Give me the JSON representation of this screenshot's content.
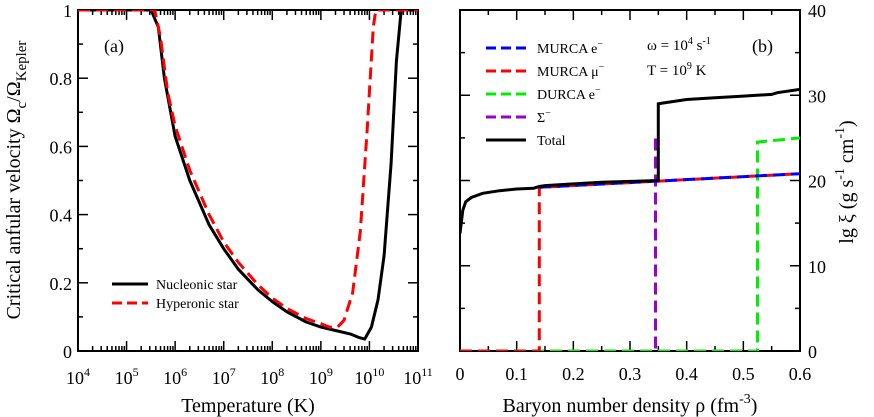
{
  "chart_data": [
    {
      "type": "line",
      "panel_label": "(a)",
      "xlabel": "Temperature (K)",
      "ylabel_parts": [
        "Critical anfular velocity ",
        "Ω",
        "c",
        "/",
        "Ω",
        "Kepler"
      ],
      "xscale": "log",
      "xlim": [
        10000,
        100000000000
      ],
      "ylim": [
        0,
        1
      ],
      "x_ticks": [
        {
          "base": "10",
          "exp": "4"
        },
        {
          "base": "10",
          "exp": "5"
        },
        {
          "base": "10",
          "exp": "6"
        },
        {
          "base": "10",
          "exp": "7"
        },
        {
          "base": "10",
          "exp": "8"
        },
        {
          "base": "10",
          "exp": "9"
        },
        {
          "base": "10",
          "exp": "10"
        },
        {
          "base": "10",
          "exp": "11"
        }
      ],
      "y_ticks": [
        "0",
        "0.2",
        "0.4",
        "0.6",
        "0.8",
        "1"
      ],
      "legend_position": "bottom-left",
      "series": [
        {
          "name": "Nucleonic star",
          "color": "#000000",
          "dash": "solid",
          "x": [
            10000,
            200000,
            320000,
            450000,
            600000,
            1000000,
            2000000,
            5000000,
            10000000,
            20000000,
            50000000,
            100000000,
            200000000,
            500000000,
            1000000000,
            2000000000,
            4000000000,
            6000000000,
            8000000000,
            11000000000,
            15000000000,
            20000000000,
            28000000000,
            36000000000,
            45000000000,
            100000000000
          ],
          "y": [
            1.0,
            1.0,
            1.0,
            0.95,
            0.8,
            0.63,
            0.5,
            0.37,
            0.3,
            0.24,
            0.18,
            0.145,
            0.115,
            0.085,
            0.07,
            0.06,
            0.05,
            0.04,
            0.035,
            0.07,
            0.15,
            0.28,
            0.55,
            0.85,
            1.0,
            1.0
          ]
        },
        {
          "name": "Hyperonic star",
          "color": "#ff0000",
          "dash": "dashed",
          "x": [
            10000,
            200000,
            380000,
            500000,
            700000,
            1000000,
            2000000,
            5000000,
            10000000,
            20000000,
            50000000,
            100000000,
            200000000,
            500000000,
            1000000000,
            1500000000,
            2200000000,
            3000000000,
            4500000000,
            6500000000,
            9000000000,
            12000000000,
            13500000000,
            100000000000
          ],
          "y": [
            1.0,
            1.0,
            1.0,
            0.92,
            0.76,
            0.66,
            0.53,
            0.4,
            0.32,
            0.26,
            0.195,
            0.155,
            0.125,
            0.095,
            0.08,
            0.07,
            0.07,
            0.09,
            0.17,
            0.35,
            0.65,
            0.95,
            1.0,
            1.0
          ]
        }
      ]
    },
    {
      "type": "line",
      "panel_label": "(b)",
      "xlabel_parts": [
        "Baryon number density ρ (fm",
        "-3",
        ")"
      ],
      "ylabel_parts": [
        "lg ξ (g s",
        "-1",
        " cm",
        "-1",
        ")"
      ],
      "y_axis_position": "right",
      "xlim": [
        0,
        0.6
      ],
      "ylim": [
        0,
        40
      ],
      "x_ticks": [
        "0",
        "0.1",
        "0.2",
        "0.3",
        "0.4",
        "0.5",
        "0.6"
      ],
      "y_ticks": [
        "0",
        "10",
        "20",
        "30",
        "40"
      ],
      "annotation_lines": [
        {
          "text": "ω = 10",
          "sup": "4",
          "suffix": " s",
          "sup2": "-1"
        },
        {
          "text": "T = 10",
          "sup": "9",
          "suffix": " K",
          "sup2": ""
        }
      ],
      "legend_position": "top-left",
      "series": [
        {
          "name": "MURCA e",
          "name_sup": "−",
          "color": "#0000ff",
          "dash": "dashed",
          "x": [
            0.14,
            0.6
          ],
          "y": [
            19.2,
            20.8
          ]
        },
        {
          "name": "MURCA μ",
          "name_sup": "−",
          "color": "#ff0000",
          "dash": "dashed",
          "x": [
            0.0,
            0.14,
            0.14,
            0.6
          ],
          "y": [
            0,
            0,
            19.2,
            20.8
          ]
        },
        {
          "name": "DURCA e",
          "name_sup": "−",
          "color": "#00ee00",
          "dash": "dashed",
          "x": [
            0.0,
            0.525,
            0.525,
            0.6
          ],
          "y": [
            0,
            0,
            24.5,
            25.0
          ]
        },
        {
          "name": "Σ",
          "name_sup": "−",
          "color": "#9900cc",
          "dash": "dashed",
          "x": [
            0.0,
            0.345,
            0.345
          ],
          "y": [
            0,
            0,
            25.5
          ]
        },
        {
          "name": "Total",
          "name_sup": "",
          "color": "#000000",
          "dash": "solid",
          "x": [
            0.0,
            0.005,
            0.01,
            0.02,
            0.04,
            0.07,
            0.1,
            0.13,
            0.14,
            0.15,
            0.2,
            0.25,
            0.3,
            0.35,
            0.35,
            0.36,
            0.4,
            0.45,
            0.5,
            0.55,
            0.56,
            0.6
          ],
          "y": [
            13.8,
            16.5,
            17.5,
            18.0,
            18.5,
            18.8,
            19.0,
            19.1,
            19.3,
            19.4,
            19.6,
            19.8,
            19.9,
            20.0,
            29.0,
            29.1,
            29.5,
            29.7,
            29.9,
            30.1,
            30.3,
            30.7
          ]
        }
      ]
    }
  ]
}
